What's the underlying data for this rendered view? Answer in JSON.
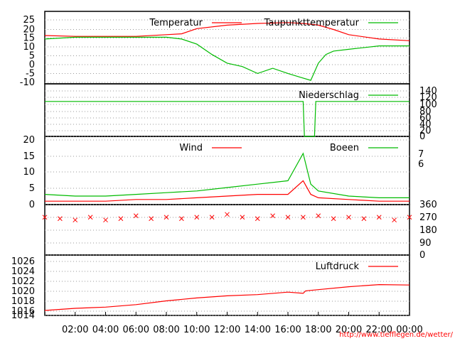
{
  "chart_data": [
    {
      "type": "line",
      "panel": "temperature",
      "y_ticks": [
        "25",
        "20",
        "15",
        "10",
        "5",
        "0",
        "-5",
        "-10"
      ],
      "ylim": [
        -12,
        30
      ],
      "grid": true,
      "legend_placement": "top-right",
      "series": [
        {
          "name": "Temperatur",
          "color": "#ff0000",
          "x": [
            "00:00",
            "02:00",
            "04:00",
            "06:00",
            "08:00",
            "09:00",
            "10:00",
            "12:00",
            "14:00",
            "16:00",
            "17:00",
            "18:00",
            "19:00",
            "20:00",
            "22:00",
            "24:00"
          ],
          "values": [
            16,
            15.5,
            15.5,
            15.5,
            16.5,
            17,
            20,
            22,
            23,
            23.5,
            23,
            22,
            19.5,
            16.5,
            14,
            13
          ]
        },
        {
          "name": "Taupunkttemperatur",
          "color": "#00bb00",
          "x": [
            "00:00",
            "02:00",
            "04:00",
            "06:00",
            "08:00",
            "09:00",
            "10:00",
            "11:00",
            "12:00",
            "13:00",
            "14:00",
            "15:00",
            "16:00",
            "16:45",
            "17:30",
            "18:00",
            "18:30",
            "19:00",
            "20:00",
            "22:00",
            "24:00"
          ],
          "values": [
            14,
            15,
            15,
            15,
            15,
            14,
            11,
            5,
            0,
            -2,
            -6,
            -3,
            -6,
            -8,
            -10,
            0,
            5,
            7,
            8,
            10,
            10
          ]
        }
      ]
    },
    {
      "type": "line",
      "panel": "precipitation",
      "y_ticks": [
        "140",
        "120",
        "100",
        "80",
        "60",
        "40",
        "20",
        "0"
      ],
      "ylim": [
        0,
        140
      ],
      "grid": true,
      "legend_placement": "top-right",
      "series": [
        {
          "name": "Niederschlag",
          "color": "#00bb00",
          "x": [
            "00:00",
            "17:00",
            "17:05",
            "17:45",
            "17:50",
            "24:00"
          ],
          "values": [
            93,
            93,
            0,
            0,
            93,
            93
          ]
        }
      ]
    },
    {
      "type": "line",
      "panel": "wind",
      "y_ticks": [
        "20",
        "15",
        "10",
        "5",
        "0"
      ],
      "beaufort_ticks": [
        "7",
        "6"
      ],
      "ylim": [
        0,
        20
      ],
      "grid": true,
      "legend_placement": "top-right",
      "series": [
        {
          "name": "Wind",
          "color": "#ff0000",
          "x": [
            "00:00",
            "02:00",
            "04:00",
            "06:00",
            "08:00",
            "10:00",
            "12:00",
            "14:00",
            "16:00",
            "17:00",
            "17:30",
            "18:00",
            "20:00",
            "22:00",
            "24:00"
          ],
          "values": [
            1,
            1,
            1,
            1.5,
            1.5,
            2,
            2.5,
            3,
            3,
            7,
            3,
            2,
            1.5,
            1,
            1
          ]
        },
        {
          "name": "Boeen",
          "color": "#00bb00",
          "x": [
            "00:00",
            "02:00",
            "04:00",
            "06:00",
            "08:00",
            "10:00",
            "12:00",
            "14:00",
            "16:00",
            "17:00",
            "17:30",
            "18:00",
            "20:00",
            "22:00",
            "24:00"
          ],
          "values": [
            3,
            2.5,
            2.5,
            3,
            3.5,
            4,
            5,
            6,
            7,
            15,
            6,
            4,
            2.5,
            2,
            2
          ]
        }
      ]
    },
    {
      "type": "scatter",
      "panel": "wind direction",
      "y_ticks": [
        "360",
        "270",
        "180",
        "90",
        "0"
      ],
      "ylim": [
        0,
        360
      ],
      "grid": true,
      "series": [
        {
          "color": "#ff0000",
          "x": [
            "00:00",
            "01:00",
            "02:00",
            "03:00",
            "04:00",
            "05:00",
            "06:00",
            "07:00",
            "08:00",
            "09:00",
            "10:00",
            "11:00",
            "12:00",
            "13:00",
            "14:00",
            "15:00",
            "16:00",
            "17:00",
            "18:00",
            "19:00",
            "20:00",
            "21:00",
            "22:00",
            "23:00",
            "24:00"
          ],
          "values": [
            270,
            260,
            250,
            270,
            250,
            260,
            280,
            260,
            270,
            260,
            270,
            270,
            290,
            270,
            260,
            280,
            270,
            270,
            280,
            260,
            270,
            260,
            270,
            250,
            270
          ]
        }
      ]
    },
    {
      "type": "line",
      "panel": "pressure",
      "y_ticks": [
        "1026",
        "1024",
        "1022",
        "1020",
        "1018",
        "1016",
        "1014"
      ],
      "ylim": [
        1013,
        1027.5
      ],
      "grid": true,
      "legend_placement": "top-right",
      "series": [
        {
          "name": "Luftdruck",
          "color": "#ff0000",
          "x": [
            "00:00",
            "02:00",
            "04:00",
            "06:00",
            "08:00",
            "10:00",
            "12:00",
            "14:00",
            "16:00",
            "17:00",
            "17:10",
            "18:00",
            "20:00",
            "22:00",
            "24:00"
          ],
          "values": [
            1014.2,
            1014.7,
            1015,
            1015.6,
            1016.5,
            1017.2,
            1017.7,
            1018,
            1018.6,
            1018.3,
            1018.9,
            1019.2,
            1019.9,
            1020.4,
            1020.3
          ]
        }
      ]
    }
  ],
  "x_axis": {
    "range_hours": [
      0,
      24
    ],
    "tick_labels": [
      "02:00",
      "04:00",
      "06:00",
      "08:00",
      "10:00",
      "12:00",
      "14:00",
      "16:00",
      "18:00",
      "20:00",
      "22:00",
      "00:00"
    ]
  },
  "credit": "http://www.tiefflegen.de/wetter/"
}
